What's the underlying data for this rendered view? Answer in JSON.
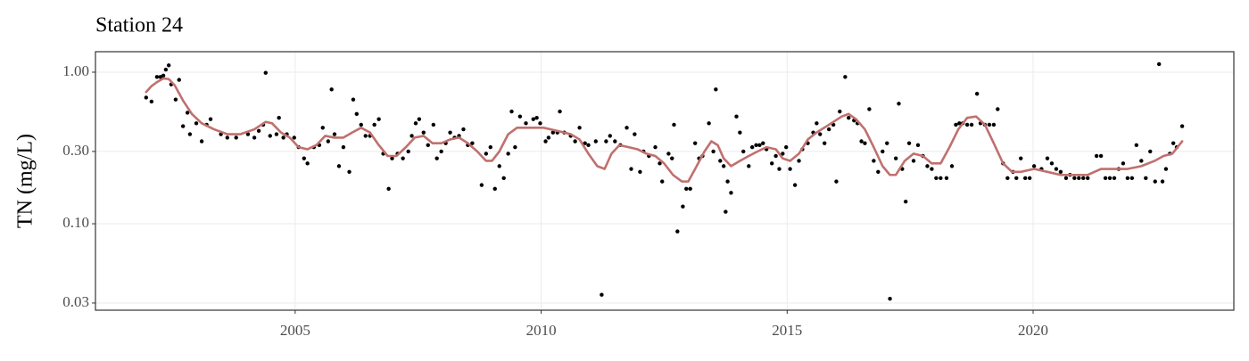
{
  "chart_data": {
    "type": "scatter",
    "title": "Station 24",
    "y_label": "TN (mg/L)",
    "log_y": true,
    "grid": true,
    "xlim": [
      2000.94,
      2024.08
    ],
    "ylim": [
      0.0269,
      1.365
    ],
    "xticks": [
      2005,
      2010,
      2015,
      2020
    ],
    "yticks": [
      {
        "value": 1,
        "label": "1.00"
      },
      {
        "value": 0.3,
        "label": "0.30"
      },
      {
        "value": 0.1,
        "label": "0.10"
      },
      {
        "value": 0.03,
        "label": "0.03"
      }
    ],
    "series": [
      {
        "type": "scatter",
        "color": "#000000",
        "x": [
          2001.97,
          2002.08,
          2002.19,
          2002.26,
          2002.32,
          2002.37,
          2002.43,
          2002.48,
          2002.57,
          2002.64,
          2002.72,
          2002.81,
          2002.86,
          2002.99,
          2003.1,
          2003.2,
          2003.28,
          2003.49,
          2003.62,
          2003.8,
          2004.04,
          2004.17,
          2004.26,
          2004.35,
          2004.4,
          2004.49,
          2004.62,
          2004.67,
          2004.76,
          2004.83,
          2004.98,
          2005.07,
          2005.18,
          2005.25,
          2005.38,
          2005.49,
          2005.56,
          2005.67,
          2005.74,
          2005.8,
          2005.89,
          2005.98,
          2006.1,
          2006.18,
          2006.25,
          2006.34,
          2006.43,
          2006.52,
          2006.61,
          2006.7,
          2006.79,
          2006.9,
          2006.97,
          2007.08,
          2007.19,
          2007.3,
          2007.37,
          2007.45,
          2007.52,
          2007.61,
          2007.7,
          2007.81,
          2007.88,
          2007.97,
          2008.06,
          2008.15,
          2008.24,
          2008.33,
          2008.42,
          2008.51,
          2008.6,
          2008.79,
          2008.88,
          2008.97,
          2009.06,
          2009.15,
          2009.24,
          2009.33,
          2009.4,
          2009.47,
          2009.57,
          2009.69,
          2009.84,
          2009.91,
          2009.98,
          2010.09,
          2010.15,
          2010.24,
          2010.33,
          2010.38,
          2010.47,
          2010.6,
          2010.69,
          2010.78,
          2010.89,
          2010.96,
          2011.11,
          2011.23,
          2011.32,
          2011.4,
          2011.5,
          2011.61,
          2011.74,
          2011.83,
          2011.9,
          2012.01,
          2012.08,
          2012.19,
          2012.32,
          2012.41,
          2012.46,
          2012.59,
          2012.66,
          2012.7,
          2012.77,
          2012.88,
          2012.95,
          2013.03,
          2013.13,
          2013.21,
          2013.28,
          2013.41,
          2013.5,
          2013.55,
          2013.64,
          2013.71,
          2013.75,
          2013.79,
          2013.86,
          2013.97,
          2014.04,
          2014.11,
          2014.22,
          2014.29,
          2014.37,
          2014.44,
          2014.51,
          2014.58,
          2014.69,
          2014.77,
          2014.84,
          2014.91,
          2014.98,
          2015.06,
          2015.16,
          2015.24,
          2015.31,
          2015.42,
          2015.53,
          2015.6,
          2015.67,
          2015.76,
          2015.85,
          2015.94,
          2016.0,
          2016.07,
          2016.18,
          2016.25,
          2016.36,
          2016.43,
          2016.51,
          2016.58,
          2016.67,
          2016.76,
          2016.85,
          2016.94,
          2017.03,
          2017.09,
          2017.21,
          2017.27,
          2017.34,
          2017.41,
          2017.48,
          2017.57,
          2017.66,
          2017.76,
          2017.85,
          2017.94,
          2018.03,
          2018.12,
          2018.24,
          2018.35,
          2018.43,
          2018.5,
          2018.57,
          2018.66,
          2018.75,
          2018.86,
          2018.93,
          2019.02,
          2019.11,
          2019.2,
          2019.28,
          2019.39,
          2019.48,
          2019.59,
          2019.66,
          2019.75,
          2019.84,
          2019.93,
          2020.02,
          2020.17,
          2020.29,
          2020.38,
          2020.47,
          2020.56,
          2020.67,
          2020.75,
          2020.84,
          2020.93,
          2021.02,
          2021.11,
          2021.29,
          2021.38,
          2021.47,
          2021.56,
          2021.65,
          2021.74,
          2021.83,
          2021.92,
          2022.01,
          2022.1,
          2022.2,
          2022.29,
          2022.38,
          2022.48,
          2022.56,
          2022.63,
          2022.7,
          2022.78,
          2022.85,
          2022.92,
          2023.03
        ],
        "values": [
          0.68,
          0.64,
          0.93,
          0.93,
          0.95,
          1.04,
          1.11,
          0.83,
          0.66,
          0.89,
          0.44,
          0.54,
          0.39,
          0.46,
          0.35,
          0.45,
          0.49,
          0.39,
          0.37,
          0.37,
          0.39,
          0.37,
          0.41,
          0.45,
          0.99,
          0.38,
          0.39,
          0.5,
          0.37,
          0.39,
          0.37,
          0.32,
          0.27,
          0.25,
          0.32,
          0.33,
          0.43,
          0.35,
          0.77,
          0.39,
          0.24,
          0.32,
          0.22,
          0.66,
          0.53,
          0.45,
          0.38,
          0.38,
          0.45,
          0.49,
          0.29,
          0.17,
          0.27,
          0.29,
          0.27,
          0.3,
          0.38,
          0.46,
          0.49,
          0.4,
          0.33,
          0.45,
          0.27,
          0.3,
          0.34,
          0.4,
          0.37,
          0.38,
          0.42,
          0.33,
          0.34,
          0.18,
          0.29,
          0.32,
          0.17,
          0.24,
          0.2,
          0.29,
          0.55,
          0.32,
          0.51,
          0.46,
          0.49,
          0.5,
          0.46,
          0.35,
          0.37,
          0.4,
          0.4,
          0.55,
          0.4,
          0.38,
          0.35,
          0.43,
          0.34,
          0.33,
          0.35,
          0.034,
          0.35,
          0.38,
          0.35,
          0.33,
          0.43,
          0.23,
          0.39,
          0.22,
          0.3,
          0.28,
          0.32,
          0.25,
          0.19,
          0.29,
          0.27,
          0.45,
          0.089,
          0.13,
          0.17,
          0.17,
          0.34,
          0.27,
          0.28,
          0.46,
          0.3,
          0.77,
          0.26,
          0.24,
          0.12,
          0.19,
          0.16,
          0.51,
          0.4,
          0.3,
          0.24,
          0.32,
          0.33,
          0.33,
          0.34,
          0.31,
          0.25,
          0.28,
          0.23,
          0.29,
          0.32,
          0.23,
          0.18,
          0.26,
          0.31,
          0.34,
          0.4,
          0.46,
          0.39,
          0.34,
          0.42,
          0.45,
          0.19,
          0.55,
          0.93,
          0.5,
          0.48,
          0.46,
          0.35,
          0.34,
          0.57,
          0.26,
          0.22,
          0.3,
          0.34,
          0.032,
          0.27,
          0.62,
          0.23,
          0.14,
          0.34,
          0.26,
          0.33,
          0.28,
          0.24,
          0.23,
          0.2,
          0.2,
          0.2,
          0.24,
          0.45,
          0.46,
          0.46,
          0.45,
          0.45,
          0.72,
          0.46,
          0.45,
          0.45,
          0.45,
          0.57,
          0.25,
          0.2,
          0.22,
          0.2,
          0.27,
          0.2,
          0.2,
          0.24,
          0.23,
          0.27,
          0.25,
          0.23,
          0.22,
          0.2,
          0.21,
          0.2,
          0.2,
          0.2,
          0.2,
          0.28,
          0.28,
          0.2,
          0.2,
          0.2,
          0.23,
          0.25,
          0.2,
          0.2,
          0.33,
          0.26,
          0.2,
          0.3,
          0.19,
          1.13,
          0.19,
          0.23,
          0.29,
          0.34,
          0.32,
          0.44
        ]
      },
      {
        "type": "line",
        "color": "#c0706e",
        "x": [
          2001.97,
          2002.08,
          2002.19,
          2002.32,
          2002.43,
          2002.55,
          2002.72,
          2002.9,
          2003.1,
          2003.35,
          2003.62,
          2003.89,
          2004.17,
          2004.4,
          2004.53,
          2004.71,
          2004.89,
          2005.07,
          2005.25,
          2005.43,
          2005.61,
          2005.8,
          2005.98,
          2006.16,
          2006.34,
          2006.52,
          2006.7,
          2006.88,
          2007.06,
          2007.25,
          2007.43,
          2007.61,
          2007.79,
          2007.97,
          2008.15,
          2008.33,
          2008.51,
          2008.7,
          2008.88,
          2009.0,
          2009.15,
          2009.33,
          2009.51,
          2009.78,
          2010.05,
          2010.33,
          2010.6,
          2010.78,
          2010.96,
          2011.14,
          2011.29,
          2011.43,
          2011.59,
          2011.78,
          2011.96,
          2012.14,
          2012.32,
          2012.5,
          2012.68,
          2012.86,
          2012.99,
          2013.13,
          2013.32,
          2013.46,
          2013.59,
          2013.71,
          2013.86,
          2014.04,
          2014.22,
          2014.4,
          2014.58,
          2014.77,
          2014.91,
          2015.06,
          2015.24,
          2015.42,
          2015.6,
          2015.85,
          2016.11,
          2016.25,
          2016.4,
          2016.58,
          2016.76,
          2016.94,
          2017.09,
          2017.21,
          2017.39,
          2017.57,
          2017.76,
          2017.94,
          2018.12,
          2018.3,
          2018.48,
          2018.66,
          2018.84,
          2019.02,
          2019.2,
          2019.39,
          2019.57,
          2019.75,
          2020.02,
          2020.29,
          2020.56,
          2020.84,
          2021.11,
          2021.38,
          2021.65,
          2021.92,
          2022.2,
          2022.47,
          2022.65,
          2022.83,
          2023.03
        ],
        "values": [
          0.74,
          0.81,
          0.86,
          0.91,
          0.9,
          0.82,
          0.65,
          0.53,
          0.46,
          0.42,
          0.39,
          0.39,
          0.42,
          0.47,
          0.46,
          0.4,
          0.37,
          0.32,
          0.31,
          0.33,
          0.38,
          0.37,
          0.37,
          0.4,
          0.43,
          0.4,
          0.33,
          0.28,
          0.28,
          0.32,
          0.37,
          0.38,
          0.34,
          0.34,
          0.36,
          0.37,
          0.34,
          0.3,
          0.26,
          0.26,
          0.3,
          0.39,
          0.43,
          0.43,
          0.43,
          0.41,
          0.39,
          0.36,
          0.29,
          0.24,
          0.23,
          0.29,
          0.33,
          0.32,
          0.31,
          0.29,
          0.28,
          0.25,
          0.21,
          0.19,
          0.19,
          0.23,
          0.3,
          0.35,
          0.33,
          0.27,
          0.24,
          0.26,
          0.28,
          0.3,
          0.32,
          0.31,
          0.27,
          0.26,
          0.29,
          0.36,
          0.4,
          0.45,
          0.51,
          0.53,
          0.49,
          0.42,
          0.32,
          0.24,
          0.21,
          0.21,
          0.26,
          0.29,
          0.28,
          0.25,
          0.25,
          0.32,
          0.42,
          0.5,
          0.51,
          0.45,
          0.34,
          0.25,
          0.22,
          0.22,
          0.23,
          0.22,
          0.21,
          0.21,
          0.21,
          0.23,
          0.23,
          0.23,
          0.24,
          0.26,
          0.28,
          0.29,
          0.35
        ]
      }
    ]
  }
}
